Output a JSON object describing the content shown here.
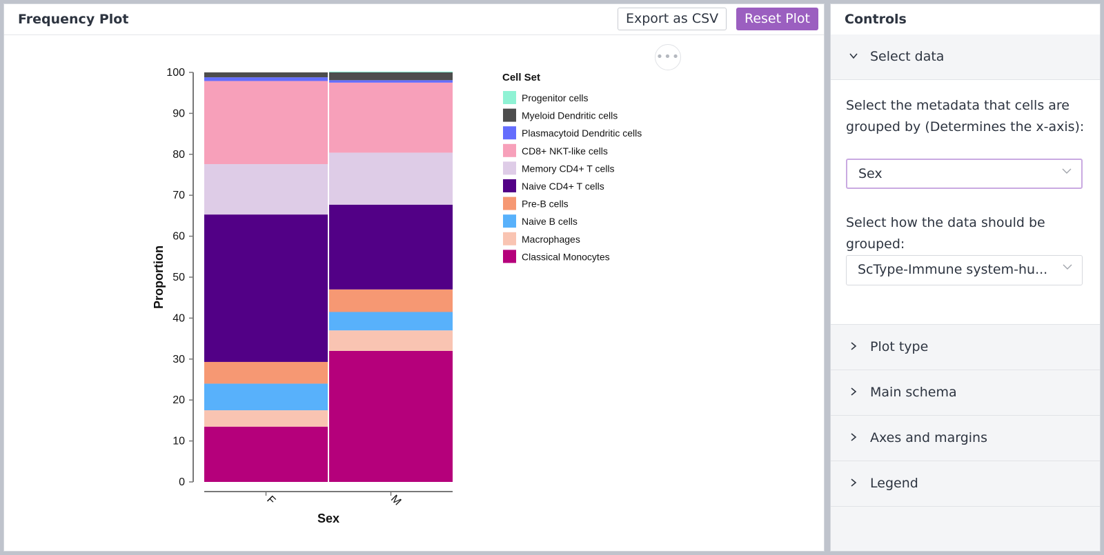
{
  "plot_panel": {
    "title": "Frequency Plot",
    "export_label": "Export as CSV",
    "reset_label": "Reset Plot",
    "more_label": "•••"
  },
  "controls_panel": {
    "title": "Controls",
    "sections": [
      {
        "label": "Select data",
        "expanded": true
      },
      {
        "label": "Plot type",
        "expanded": false
      },
      {
        "label": "Main schema",
        "expanded": false
      },
      {
        "label": "Axes and margins",
        "expanded": false
      },
      {
        "label": "Legend",
        "expanded": false
      }
    ],
    "select_data": {
      "groupby_label": "Select the metadata that cells are grouped by (Determines the x-axis):",
      "groupby_value": "Sex",
      "grouping_label": "Select how the data should be grouped:",
      "grouping_value": "ScType-Immune system-hu..."
    },
    "icons": {
      "expanded": "chevron-down-icon",
      "collapsed": "chevron-right-icon",
      "select": "chevron-down-icon"
    }
  },
  "chart_data": {
    "type": "bar",
    "stacked": true,
    "categories": [
      "F",
      "M"
    ],
    "xlabel": "Sex",
    "ylabel": "Proportion",
    "ylim": [
      0,
      100
    ],
    "yticks": [
      0,
      10,
      20,
      30,
      40,
      50,
      60,
      70,
      80,
      90,
      100
    ],
    "legend_title": "Cell Set",
    "legend_position": "right",
    "grid": false,
    "series": [
      {
        "name": "Classical Monocytes",
        "color": "#b5007b",
        "values": [
          13.5,
          32.0
        ]
      },
      {
        "name": "Macrophages",
        "color": "#f9c4b2",
        "values": [
          4.0,
          5.0
        ]
      },
      {
        "name": "Naive B cells",
        "color": "#58b1fb",
        "values": [
          6.5,
          4.5
        ]
      },
      {
        "name": "Pre-B cells",
        "color": "#f69873",
        "values": [
          5.3,
          5.5
        ]
      },
      {
        "name": "Naive CD4+ T cells",
        "color": "#520086",
        "values": [
          36.0,
          20.7
        ]
      },
      {
        "name": "Memory CD4+ T cells",
        "color": "#decce7",
        "values": [
          12.3,
          12.7
        ]
      },
      {
        "name": "CD8+ NKT-like cells",
        "color": "#f7a0ba",
        "values": [
          20.3,
          17.1
        ]
      },
      {
        "name": "Plasmacytoid Dendritic cells",
        "color": "#646dfd",
        "values": [
          0.9,
          0.6
        ]
      },
      {
        "name": "Myeloid Dendritic cells",
        "color": "#4d4d4d",
        "values": [
          1.2,
          1.9
        ]
      },
      {
        "name": "Progenitor cells",
        "color": "#8ff2d4",
        "values": [
          0.0,
          0.2
        ]
      }
    ]
  }
}
